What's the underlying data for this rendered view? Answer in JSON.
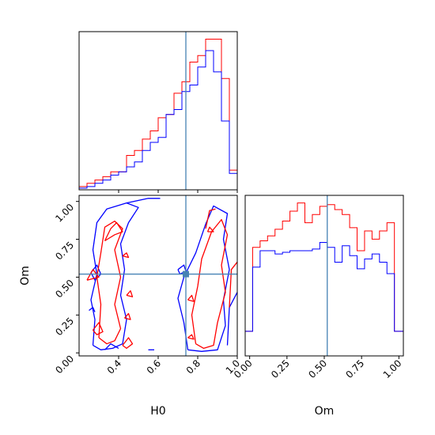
{
  "chart_data": {
    "type": "corner",
    "params": [
      "H0",
      "Om"
    ],
    "truths": {
      "H0": 0.74,
      "Om": 0.52
    },
    "colors": {
      "red": "#ff0000",
      "blue": "#0000ff",
      "truth": "#4682b4"
    },
    "panels": [
      {
        "id": "hist_H0",
        "type": "step-histogram",
        "xlim": [
          0.2,
          1.0
        ],
        "x_edges": [
          0.2,
          0.24,
          0.28,
          0.32,
          0.36,
          0.4,
          0.44,
          0.48,
          0.52,
          0.56,
          0.6,
          0.64,
          0.68,
          0.72,
          0.76,
          0.8,
          0.84,
          0.88,
          0.92,
          0.96,
          1.0
        ],
        "series": [
          {
            "name": "red",
            "color": "#ff0000",
            "values": [
              0.02,
              0.04,
              0.06,
              0.08,
              0.11,
              0.11,
              0.21,
              0.24,
              0.31,
              0.36,
              0.44,
              0.46,
              0.59,
              0.66,
              0.78,
              0.82,
              0.92,
              0.92,
              0.68,
              0.12
            ]
          },
          {
            "name": "blue",
            "color": "#0000ff",
            "values": [
              0.01,
              0.02,
              0.04,
              0.06,
              0.09,
              0.11,
              0.14,
              0.17,
              0.24,
              0.29,
              0.32,
              0.46,
              0.49,
              0.6,
              0.64,
              0.75,
              0.85,
              0.72,
              0.42,
              0.1
            ]
          }
        ]
      },
      {
        "id": "hist_Om",
        "type": "step-histogram",
        "xlim": [
          -0.03,
          1.03
        ],
        "xticks": [
          "0.00",
          "0.25",
          "0.50",
          "0.75",
          "1.00"
        ],
        "xlabel": "Om",
        "x_edges": [
          -0.03,
          0.02,
          0.07,
          0.12,
          0.17,
          0.22,
          0.27,
          0.32,
          0.37,
          0.42,
          0.47,
          0.52,
          0.57,
          0.62,
          0.67,
          0.72,
          0.77,
          0.82,
          0.87,
          0.92,
          0.97,
          1.03
        ],
        "series": [
          {
            "name": "red",
            "color": "#ff0000",
            "values": [
              0.15,
              0.66,
              0.7,
              0.73,
              0.77,
              0.82,
              0.88,
              0.93,
              0.81,
              0.86,
              0.91,
              0.92,
              0.89,
              0.86,
              0.78,
              0.64,
              0.76,
              0.71,
              0.76,
              0.81,
              0.15
            ]
          },
          {
            "name": "blue",
            "color": "#0000ff",
            "values": [
              0.15,
              0.54,
              0.64,
              0.64,
              0.62,
              0.63,
              0.64,
              0.64,
              0.64,
              0.65,
              0.69,
              0.66,
              0.57,
              0.67,
              0.61,
              0.53,
              0.59,
              0.62,
              0.57,
              0.5,
              0.15
            ]
          }
        ]
      },
      {
        "id": "contour_H0_Om",
        "type": "contour",
        "xlim": [
          0.2,
          1.0
        ],
        "ylim": [
          -0.02,
          1.04
        ],
        "xticks": [
          "0.4",
          "0.6",
          "0.8",
          "1.0"
        ],
        "yticks": [
          "0.00",
          "0.25",
          "0.50",
          "0.75",
          "1.00"
        ],
        "xlabel": "H0",
        "ylabel": "Om",
        "contours": [
          {
            "color": "#0000ff",
            "points": [
              [
                0.27,
                0.05
              ],
              [
                0.28,
                0.22
              ],
              [
                0.26,
                0.35
              ],
              [
                0.29,
                0.52
              ],
              [
                0.27,
                0.68
              ],
              [
                0.29,
                0.86
              ],
              [
                0.34,
                0.95
              ],
              [
                0.44,
                0.99
              ],
              [
                0.5,
                0.96
              ],
              [
                0.45,
                0.86
              ],
              [
                0.41,
                0.72
              ],
              [
                0.43,
                0.55
              ],
              [
                0.41,
                0.38
              ],
              [
                0.44,
                0.22
              ],
              [
                0.42,
                0.06
              ],
              [
                0.37,
                0.03
              ],
              [
                0.31,
                0.02
              ],
              [
                0.27,
                0.05
              ]
            ]
          },
          {
            "color": "#0000ff",
            "points": [
              [
                0.75,
                0.02
              ],
              [
                0.73,
                0.2
              ],
              [
                0.7,
                0.36
              ],
              [
                0.73,
                0.5
              ],
              [
                0.79,
                0.66
              ],
              [
                0.84,
                0.85
              ],
              [
                0.88,
                0.97
              ],
              [
                0.95,
                0.92
              ],
              [
                0.93,
                0.75
              ],
              [
                0.96,
                0.55
              ],
              [
                0.93,
                0.35
              ],
              [
                0.94,
                0.18
              ],
              [
                0.9,
                0.02
              ],
              [
                0.82,
                0.01
              ],
              [
                0.75,
                0.02
              ]
            ]
          },
          {
            "color": "#0000ff",
            "points": [
              [
                0.95,
                0.05
              ],
              [
                0.96,
                0.3
              ],
              [
                1.0,
                0.4
              ]
            ]
          },
          {
            "color": "#0000ff",
            "points": [
              [
                0.33,
                0.02
              ],
              [
                0.36,
                0.06
              ],
              [
                0.4,
                0.03
              ]
            ]
          },
          {
            "color": "#0000ff",
            "points": [
              [
                0.55,
                0.02
              ],
              [
                0.58,
                0.02
              ]
            ]
          },
          {
            "color": "#0000ff",
            "points": [
              [
                0.44,
                0.99
              ],
              [
                0.55,
                1.02
              ],
              [
                0.61,
                1.02
              ]
            ]
          },
          {
            "color": "#0000ff",
            "points": [
              [
                0.26,
                0.53
              ],
              [
                0.29,
                0.58
              ],
              [
                0.31,
                0.52
              ],
              [
                0.28,
                0.48
              ],
              [
                0.26,
                0.53
              ]
            ]
          },
          {
            "color": "#0000ff",
            "points": [
              [
                0.7,
                0.55
              ],
              [
                0.73,
                0.58
              ],
              [
                0.74,
                0.54
              ],
              [
                0.71,
                0.52
              ],
              [
                0.7,
                0.55
              ]
            ]
          },
          {
            "color": "#0000ff",
            "points": [
              [
                0.25,
                0.28
              ],
              [
                0.27,
                0.3
              ],
              [
                0.28,
                0.27
              ]
            ]
          },
          {
            "color": "#ff0000",
            "points": [
              [
                0.3,
                0.1
              ],
              [
                0.31,
                0.32
              ],
              [
                0.29,
                0.5
              ],
              [
                0.31,
                0.66
              ],
              [
                0.33,
                0.83
              ],
              [
                0.38,
                0.87
              ],
              [
                0.42,
                0.82
              ],
              [
                0.38,
                0.68
              ],
              [
                0.41,
                0.5
              ],
              [
                0.38,
                0.32
              ],
              [
                0.41,
                0.16
              ],
              [
                0.38,
                0.08
              ],
              [
                0.34,
                0.06
              ],
              [
                0.3,
                0.1
              ]
            ]
          },
          {
            "color": "#ff0000",
            "points": [
              [
                0.79,
                0.06
              ],
              [
                0.77,
                0.25
              ],
              [
                0.8,
                0.44
              ],
              [
                0.82,
                0.62
              ],
              [
                0.87,
                0.8
              ],
              [
                0.92,
                0.88
              ],
              [
                0.95,
                0.78
              ],
              [
                0.92,
                0.58
              ],
              [
                0.94,
                0.4
              ],
              [
                0.9,
                0.2
              ],
              [
                0.88,
                0.05
              ],
              [
                0.83,
                0.03
              ],
              [
                0.79,
                0.06
              ]
            ]
          },
          {
            "color": "#ff0000",
            "points": [
              [
                0.84,
                0.82
              ],
              [
                0.86,
                0.94
              ],
              [
                0.89,
                0.95
              ]
            ]
          },
          {
            "color": "#ff0000",
            "points": [
              [
                0.33,
                0.74
              ],
              [
                0.36,
                0.82
              ],
              [
                0.39,
                0.86
              ],
              [
                0.42,
                0.8
              ],
              [
                0.38,
                0.78
              ],
              [
                0.33,
                0.74
              ]
            ]
          },
          {
            "color": "#ff0000",
            "points": [
              [
                0.27,
                0.15
              ],
              [
                0.3,
                0.2
              ],
              [
                0.32,
                0.14
              ],
              [
                0.29,
                0.12
              ],
              [
                0.27,
                0.15
              ]
            ]
          },
          {
            "color": "#ff0000",
            "points": [
              [
                0.42,
                0.05
              ],
              [
                0.45,
                0.1
              ],
              [
                0.47,
                0.06
              ],
              [
                0.44,
                0.03
              ],
              [
                0.42,
                0.05
              ]
            ]
          },
          {
            "color": "#ff0000",
            "points": [
              [
                0.43,
                0.23
              ],
              [
                0.45,
                0.26
              ],
              [
                0.46,
                0.22
              ],
              [
                0.43,
                0.23
              ]
            ]
          },
          {
            "color": "#ff0000",
            "points": [
              [
                0.44,
                0.38
              ],
              [
                0.46,
                0.41
              ],
              [
                0.47,
                0.37
              ],
              [
                0.44,
                0.38
              ]
            ]
          },
          {
            "color": "#ff0000",
            "points": [
              [
                0.42,
                0.64
              ],
              [
                0.44,
                0.66
              ],
              [
                0.45,
                0.63
              ],
              [
                0.42,
                0.64
              ]
            ]
          },
          {
            "color": "#ff0000",
            "points": [
              [
                0.75,
                0.1
              ],
              [
                0.77,
                0.12
              ],
              [
                0.78,
                0.09
              ],
              [
                0.75,
                0.1
              ]
            ]
          },
          {
            "color": "#ff0000",
            "points": [
              [
                0.75,
                0.35
              ],
              [
                0.77,
                0.38
              ],
              [
                0.78,
                0.34
              ],
              [
                0.75,
                0.35
              ]
            ]
          },
          {
            "color": "#ff0000",
            "points": [
              [
                0.85,
                0.8
              ],
              [
                0.86,
                0.83
              ],
              [
                0.88,
                0.8
              ],
              [
                0.85,
                0.8
              ]
            ]
          },
          {
            "color": "#ff0000",
            "points": [
              [
                0.96,
                0.3
              ],
              [
                0.97,
                0.55
              ],
              [
                1.0,
                0.6
              ]
            ]
          },
          {
            "color": "#ff0000",
            "points": [
              [
                0.24,
                0.48
              ],
              [
                0.27,
                0.55
              ],
              [
                0.3,
                0.5
              ],
              [
                0.24,
                0.48
              ]
            ]
          }
        ]
      }
    ]
  }
}
